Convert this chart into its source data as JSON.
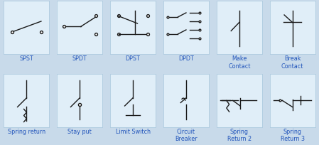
{
  "bg_outer": "#c8daea",
  "bg_cell": "#e0eef8",
  "cell_edge": "#b0cce0",
  "symbol_color": "#1a1a1a",
  "label_color": "#2255bb",
  "label_fontsize": 5.8,
  "labels_row0": [
    "SPST",
    "SPDT",
    "DPST",
    "DPDT",
    "Make\nContact",
    "Break\nContact"
  ],
  "labels_row1": [
    "Spring return",
    "Stay put",
    "Limit Switch",
    "Circuit\nBreaker",
    "Spring\nReturn 2",
    "Spring\nReturn 3"
  ]
}
